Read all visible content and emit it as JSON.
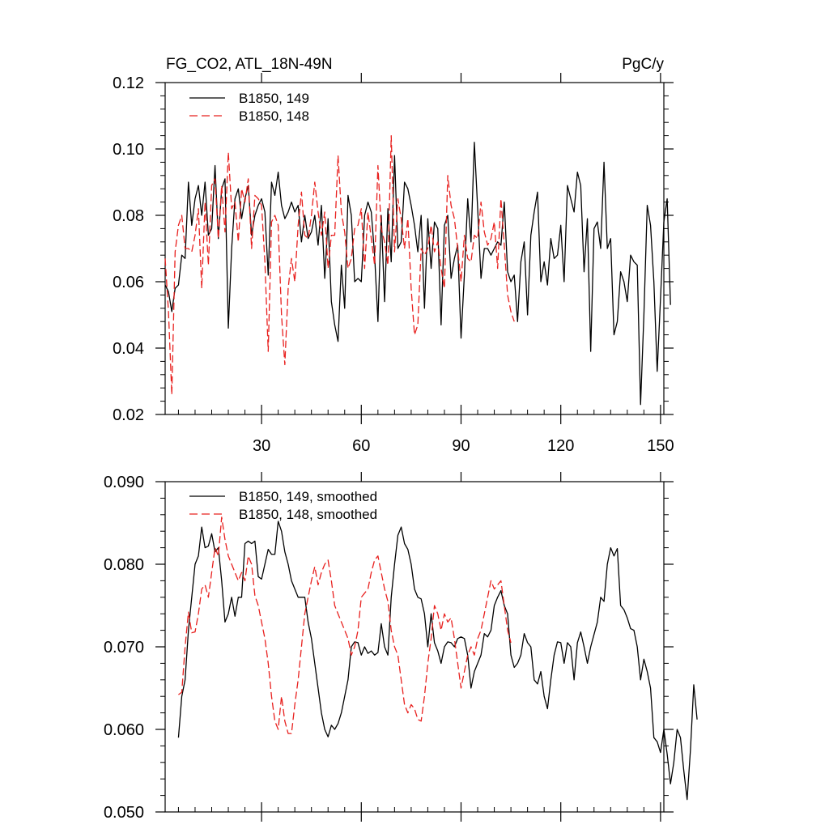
{
  "colors": {
    "series_149": "#000000",
    "series_148": "#e8201e",
    "axes": "#000000"
  },
  "chart_data": [
    {
      "type": "line",
      "title_left": "FG_CO2, ATL_18N-49N",
      "title_right": "PgC/y",
      "xlim": [
        1,
        151
      ],
      "ylim": [
        0.02,
        0.12
      ],
      "xticks": [
        30,
        60,
        90,
        120,
        150
      ],
      "xtick_labels": [
        "30",
        "60",
        "90",
        "120",
        "150"
      ],
      "yticks": [
        0.02,
        0.04,
        0.06,
        0.08,
        0.1,
        0.12
      ],
      "ytick_labels": [
        "0.02",
        "0.04",
        "0.06",
        "0.08",
        "0.10",
        "0.12"
      ],
      "legend_position": "top-left",
      "series": [
        {
          "name": "B1850, 149",
          "style": "solid",
          "color": "#000000",
          "x_start": 1,
          "values": [
            0.059,
            0.057,
            0.051,
            0.058,
            0.059,
            0.068,
            0.067,
            0.09,
            0.077,
            0.085,
            0.089,
            0.08,
            0.09,
            0.074,
            0.076,
            0.095,
            0.073,
            0.088,
            0.091,
            0.046,
            0.07,
            0.085,
            0.088,
            0.079,
            0.085,
            0.089,
            0.074,
            0.08,
            0.083,
            0.085,
            0.081,
            0.062,
            0.09,
            0.086,
            0.093,
            0.083,
            0.079,
            0.081,
            0.084,
            0.081,
            0.083,
            0.072,
            0.08,
            0.073,
            0.075,
            0.08,
            0.071,
            0.083,
            0.061,
            0.079,
            0.054,
            0.047,
            0.042,
            0.065,
            0.052,
            0.086,
            0.08,
            0.06,
            0.061,
            0.06,
            0.08,
            0.084,
            0.081,
            0.068,
            0.048,
            0.08,
            0.054,
            0.082,
            0.066,
            0.098,
            0.07,
            0.072,
            0.09,
            0.088,
            0.083,
            0.077,
            0.069,
            0.08,
            0.052,
            0.079,
            0.064,
            0.078,
            0.076,
            0.047,
            0.077,
            0.08,
            0.061,
            0.067,
            0.071,
            0.043,
            0.062,
            0.085,
            0.072,
            0.102,
            0.082,
            0.061,
            0.07,
            0.07,
            0.068,
            0.07,
            0.072,
            0.071,
            0.084,
            0.063,
            0.06,
            0.062,
            0.048,
            0.066,
            0.072,
            0.05,
            0.074,
            0.081,
            0.087,
            0.06,
            0.066,
            0.059,
            0.073,
            0.067,
            0.068,
            0.077,
            0.06,
            0.089,
            0.085,
            0.081,
            0.093,
            0.089,
            0.063,
            0.079,
            0.039,
            0.076,
            0.078,
            0.07,
            0.096,
            0.07,
            0.073,
            0.044,
            0.048,
            0.063,
            0.06,
            0.054,
            0.068,
            0.066,
            0.065,
            0.023,
            0.05,
            0.083,
            0.077,
            0.06,
            0.033,
            0.055,
            0.078,
            0.085,
            0.053
          ]
        },
        {
          "name": "B1850, 148",
          "style": "dashed",
          "color": "#e8201e",
          "x_start": 1,
          "values": [
            0.067,
            0.051,
            0.026,
            0.069,
            0.077,
            0.08,
            0.07,
            0.07,
            0.069,
            0.074,
            0.082,
            0.058,
            0.084,
            0.065,
            0.089,
            0.091,
            0.073,
            0.089,
            0.075,
            0.099,
            0.082,
            0.084,
            0.072,
            0.088,
            0.084,
            0.091,
            0.07,
            0.086,
            0.085,
            0.083,
            0.066,
            0.039,
            0.078,
            0.08,
            0.077,
            0.05,
            0.035,
            0.058,
            0.067,
            0.06,
            0.077,
            0.087,
            0.074,
            0.073,
            0.08,
            0.09,
            0.081,
            0.074,
            0.081,
            0.064,
            0.074,
            0.074,
            0.098,
            0.081,
            0.075,
            0.064,
            0.067,
            0.076,
            0.077,
            0.082,
            0.064,
            0.081,
            0.073,
            0.065,
            0.095,
            0.076,
            0.072,
            0.065,
            0.104,
            0.069,
            0.085,
            0.079,
            0.07,
            0.079,
            0.058,
            0.044,
            0.047,
            0.07,
            0.068,
            0.07,
            0.077,
            0.069,
            0.072,
            0.064,
            0.058,
            0.092,
            0.083,
            0.079,
            0.07,
            0.06,
            0.074,
            0.067,
            0.066,
            0.074,
            0.073,
            0.084,
            0.075,
            0.071,
            0.073,
            0.078,
            0.064,
            0.085,
            0.071,
            0.056,
            0.051,
            0.048
          ]
        }
      ]
    },
    {
      "type": "line",
      "xlim": [
        1,
        151
      ],
      "ylim": [
        0.05,
        0.09
      ],
      "xticks": [
        30,
        60,
        90,
        120,
        150
      ],
      "yticks": [
        0.05,
        0.06,
        0.07,
        0.08,
        0.09
      ],
      "ytick_labels": [
        "0.050",
        "0.060",
        "0.070",
        "0.080",
        "0.090"
      ],
      "legend_position": "top-left",
      "series": [
        {
          "name": "B1850, 149, smoothed",
          "style": "solid",
          "color": "#000000",
          "x_start": 5,
          "values": [
            0.059,
            0.064,
            0.066,
            0.072,
            0.076,
            0.08,
            0.081,
            0.0845,
            0.082,
            0.0822,
            0.0837,
            0.0815,
            0.082,
            0.078,
            0.073,
            0.074,
            0.076,
            0.0737,
            0.076,
            0.076,
            0.0825,
            0.0828,
            0.0825,
            0.0828,
            0.0785,
            0.0782,
            0.08,
            0.0818,
            0.0812,
            0.0812,
            0.0852,
            0.084,
            0.0815,
            0.08,
            0.078,
            0.077,
            0.076,
            0.076,
            0.076,
            0.073,
            0.071,
            0.068,
            0.065,
            0.062,
            0.06,
            0.0591,
            0.0605,
            0.06,
            0.0607,
            0.062,
            0.064,
            0.066,
            0.07,
            0.0706,
            0.0705,
            0.069,
            0.07,
            0.0692,
            0.0695,
            0.069,
            0.0693,
            0.0728,
            0.07,
            0.069,
            0.076,
            0.08,
            0.0835,
            0.0845,
            0.0825,
            0.0818,
            0.08,
            0.077,
            0.076,
            0.0758,
            0.074,
            0.07,
            0.074,
            0.0705,
            0.0695,
            0.068,
            0.07,
            0.0706,
            0.0705,
            0.07,
            0.071,
            0.0712,
            0.071,
            0.069,
            0.065,
            0.067,
            0.068,
            0.069,
            0.0716,
            0.0712,
            0.072,
            0.075,
            0.076,
            0.0768,
            0.075,
            0.074,
            0.069,
            0.0675,
            0.068,
            0.069,
            0.0716,
            0.0705,
            0.07,
            0.066,
            0.0655,
            0.067,
            0.064,
            0.0625,
            0.066,
            0.069,
            0.0706,
            0.0705,
            0.068,
            0.0705,
            0.07,
            0.066,
            0.0705,
            0.0718,
            0.07,
            0.068,
            0.07,
            0.0715,
            0.073,
            0.076,
            0.0755,
            0.08,
            0.082,
            0.081,
            0.0819,
            0.075,
            0.0745,
            0.0735,
            0.0722,
            0.072,
            0.07,
            0.066,
            0.0685,
            0.067,
            0.065,
            0.059,
            0.0585,
            0.0572,
            0.06,
            0.057,
            0.0534,
            0.056,
            0.06,
            0.059,
            0.055,
            0.0515,
            0.0575,
            0.0654,
            0.0612
          ]
        },
        {
          "name": "B1850, 148, smoothed",
          "style": "dashed",
          "color": "#e8201e",
          "x_start": 5,
          "values": [
            0.0642,
            0.0645,
            0.07,
            0.0742,
            0.0717,
            0.0718,
            0.074,
            0.077,
            0.0775,
            0.076,
            0.079,
            0.082,
            0.081,
            0.0857,
            0.083,
            0.081,
            0.08,
            0.079,
            0.078,
            0.079,
            0.078,
            0.081,
            0.08,
            0.0762,
            0.075,
            0.073,
            0.071,
            0.068,
            0.064,
            0.061,
            0.06,
            0.064,
            0.061,
            0.0595,
            0.0595,
            0.063,
            0.066,
            0.07,
            0.074,
            0.076,
            0.078,
            0.0797,
            0.0775,
            0.079,
            0.08,
            0.0805,
            0.078,
            0.075,
            0.074,
            0.073,
            0.072,
            0.071,
            0.069,
            0.07,
            0.072,
            0.076,
            0.0765,
            0.077,
            0.079,
            0.0805,
            0.081,
            0.079,
            0.077,
            0.0755,
            0.072,
            0.07,
            0.069,
            0.066,
            0.063,
            0.062,
            0.063,
            0.0625,
            0.0612,
            0.061,
            0.064,
            0.068,
            0.071,
            0.075,
            0.074,
            0.072,
            0.074,
            0.073,
            0.0735,
            0.071,
            0.068,
            0.065,
            0.067,
            0.069,
            0.07,
            0.069,
            0.071,
            0.072,
            0.074,
            0.076,
            0.078,
            0.077,
            0.0775,
            0.078,
            0.075,
            0.072,
            0.0705
          ]
        }
      ]
    }
  ]
}
